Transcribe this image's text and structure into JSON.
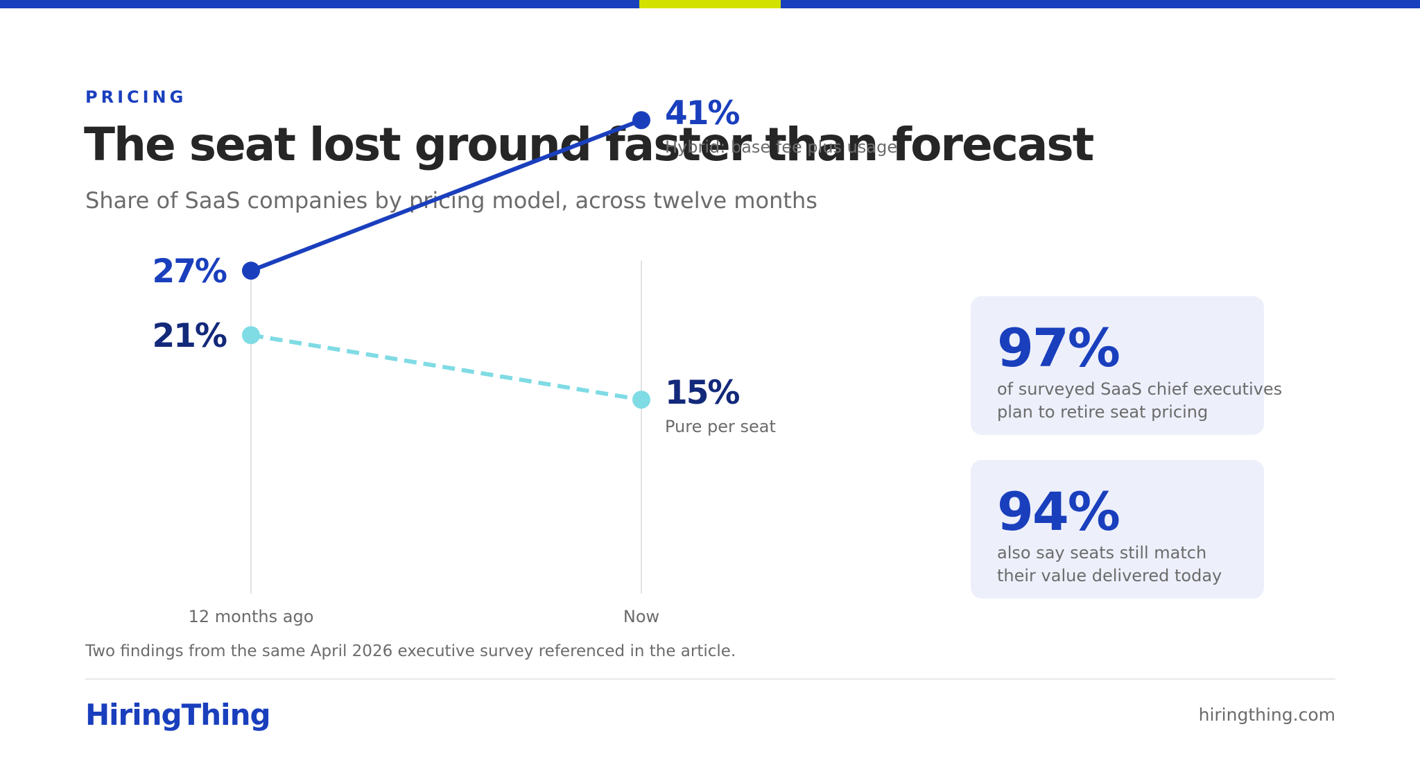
{
  "colors": {
    "accent": "#1a3fbd",
    "highlight": "#d2e100",
    "navy": "#13297a",
    "cyan": "#7fdbe4",
    "card": "#edf0fb",
    "text_dark": "#262626",
    "text_muted": "#6b6b6b"
  },
  "header": {
    "eyebrow": "PRICING",
    "title": "The seat lost ground faster than forecast",
    "subtitle": "Share of SaaS companies by pricing model, across twelve months"
  },
  "chart_data": {
    "type": "line",
    "categories": [
      "12 months ago",
      "Now"
    ],
    "series": [
      {
        "name": "Hybrid: base fee plus usage",
        "values": [
          27,
          41
        ],
        "labels": [
          "27%",
          "41%"
        ],
        "color": "#1a3fbd",
        "style": "solid"
      },
      {
        "name": "Pure per seat",
        "values": [
          21,
          15
        ],
        "labels": [
          "21%",
          "15%"
        ],
        "color": "#7fdbe4",
        "style": "dashed"
      }
    ],
    "grid": "vertical guides at each category"
  },
  "stats": [
    {
      "value": "97%",
      "lines": [
        "of surveyed SaaS chief executives",
        "plan to retire seat pricing"
      ]
    },
    {
      "value": "94%",
      "lines": [
        "also say seats still match",
        "their value delivered today"
      ]
    }
  ],
  "footer": {
    "note": "Two findings from the same April 2026 executive survey referenced in the article.",
    "brand": "HiringThing",
    "site": "hiringthing.com"
  }
}
